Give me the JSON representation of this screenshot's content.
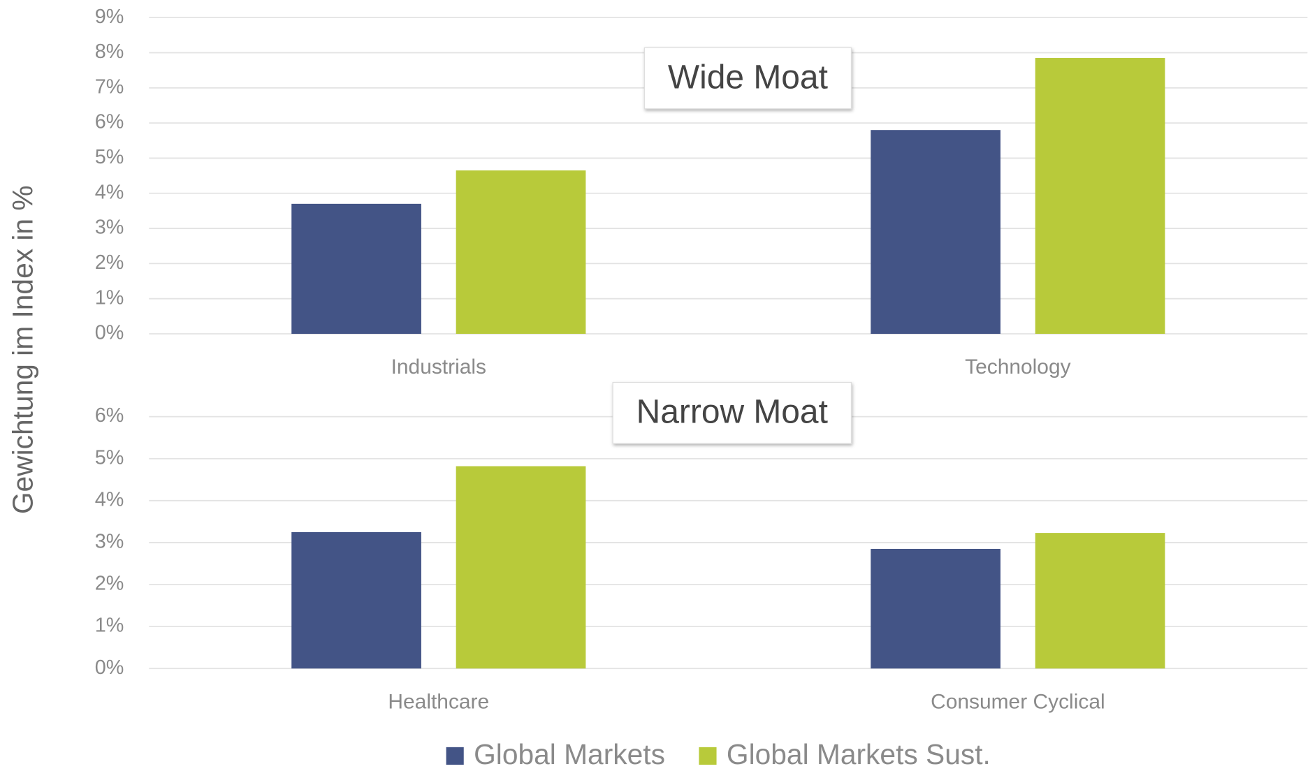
{
  "chart_data": [
    {
      "type": "bar",
      "title": "Wide Moat",
      "y_label": "Gewichtung im Index in %",
      "categories": [
        "Industrials",
        "Technology"
      ],
      "series": [
        {
          "name": "Global Markets",
          "color": "#435486",
          "values": [
            3.7,
            5.8
          ]
        },
        {
          "name": "Global Markets Sust.",
          "color": "#b8ca3a",
          "values": [
            4.65,
            7.85
          ]
        }
      ],
      "ylim": [
        0,
        9
      ],
      "yticks": [
        {
          "value": 0,
          "label": "0%"
        },
        {
          "value": 1,
          "label": "1%"
        },
        {
          "value": 2,
          "label": "2%"
        },
        {
          "value": 3,
          "label": "3%"
        },
        {
          "value": 4,
          "label": "4%"
        },
        {
          "value": 5,
          "label": "5%"
        },
        {
          "value": 6,
          "label": "6%"
        },
        {
          "value": 7,
          "label": "7%"
        },
        {
          "value": 8,
          "label": "8%"
        },
        {
          "value": 9,
          "label": "9%"
        }
      ],
      "grid": true
    },
    {
      "type": "bar",
      "title": "Narrow Moat",
      "categories": [
        "Healthcare",
        "Consumer Cyclical"
      ],
      "series": [
        {
          "name": "Global Markets",
          "color": "#435486",
          "values": [
            3.25,
            2.85
          ]
        },
        {
          "name": "Global Markets Sust.",
          "color": "#b8ca3a",
          "values": [
            4.82,
            3.23
          ]
        }
      ],
      "ylim": [
        0,
        6
      ],
      "yticks": [
        {
          "value": 0,
          "label": "0%"
        },
        {
          "value": 1,
          "label": "1%"
        },
        {
          "value": 2,
          "label": "2%"
        },
        {
          "value": 3,
          "label": "3%"
        },
        {
          "value": 4,
          "label": "4%"
        },
        {
          "value": 5,
          "label": "5%"
        },
        {
          "value": 6,
          "label": "6%"
        }
      ],
      "grid": true
    }
  ]
}
